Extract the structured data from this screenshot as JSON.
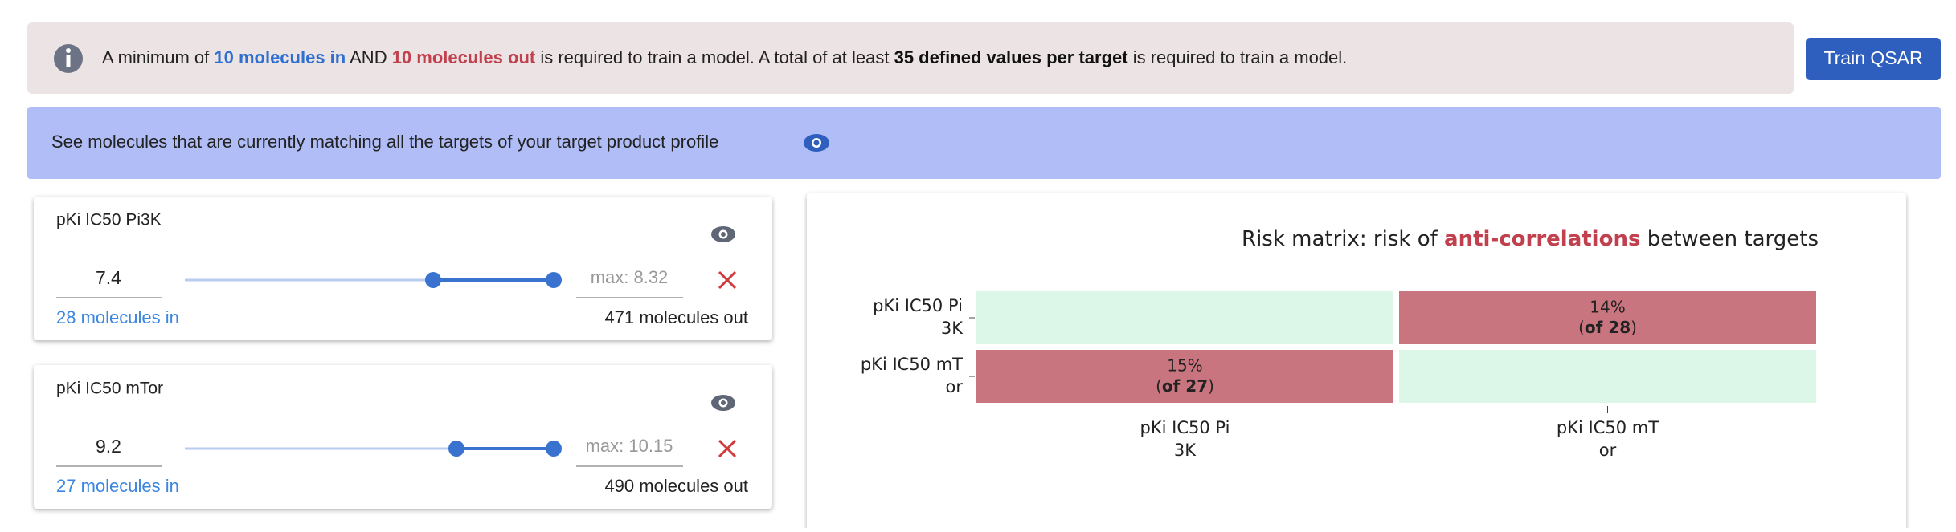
{
  "banner": {
    "parts": [
      {
        "text": "A minimum of "
      },
      {
        "text": "10 molecules in",
        "style": "in"
      },
      {
        "text": " AND "
      },
      {
        "text": "10 molecules out",
        "style": "out"
      },
      {
        "text": " is required to train a model. A total of at least "
      },
      {
        "text": "35 defined values per target",
        "style": "strong"
      },
      {
        "text": " is required to train a model."
      }
    ]
  },
  "train_button": "Train QSAR",
  "match_bar": "See molecules that are currently matching all the targets of your target product profile",
  "targets": [
    {
      "name": "pKi IC50 Pi3K",
      "value": "7.4",
      "max_placeholder": "max: 8.32",
      "molecules_in": "28 molecules in",
      "molecules_out": "471 molecules out"
    },
    {
      "name": "pKi IC50 mTor",
      "value": "9.2",
      "max_placeholder": "max: 10.15",
      "molecules_in": "27 molecules in",
      "molecules_out": "490 molecules out"
    }
  ],
  "risk_matrix": {
    "title_parts": [
      {
        "text": "Risk matrix: risk of "
      },
      {
        "text": "anti-correlations",
        "style": "out"
      },
      {
        "text": " between targets"
      }
    ],
    "y_labels": [
      [
        "pKi IC50 Pi",
        "3K"
      ],
      [
        "pKi IC50 mT",
        "or"
      ]
    ],
    "x_labels": [
      [
        "pKi IC50 Pi",
        "3K"
      ],
      [
        "pKi IC50 mT",
        "or"
      ]
    ],
    "cells": [
      [
        null,
        {
          "label": "14%",
          "detail": [
            "(",
            "of 28",
            ")"
          ]
        }
      ],
      [
        {
          "label": "15%",
          "detail": [
            "(",
            "of 27",
            ")"
          ]
        },
        null
      ]
    ],
    "colors": {
      "empty": "#dcf7e7",
      "risk": "#c97580"
    }
  }
}
